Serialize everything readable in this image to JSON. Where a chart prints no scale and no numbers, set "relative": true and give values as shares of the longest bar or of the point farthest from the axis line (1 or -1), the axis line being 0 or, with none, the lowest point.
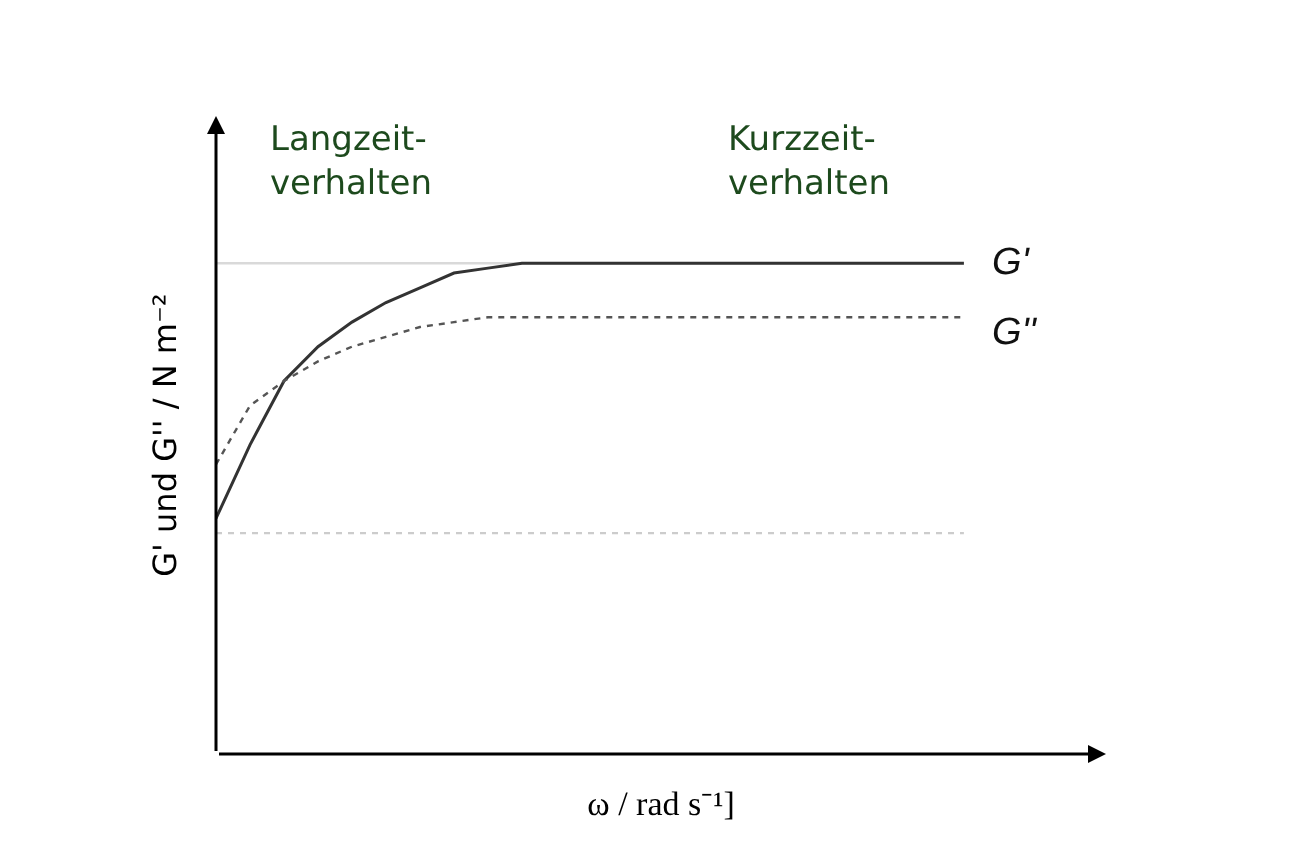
{
  "chart_data": {
    "type": "line",
    "relative": true,
    "xlabel": "ω / rad s⁻¹]",
    "ylabel": "G' und G'' / N m⁻²",
    "annotations": [
      "Langzeit-\nverhalten",
      "Kurzzeit-\nverhalten"
    ],
    "categories": [
      null,
      null,
      null,
      null,
      null,
      null,
      null,
      null,
      null,
      null,
      null,
      null,
      null,
      null,
      null,
      null,
      null,
      null,
      null,
      null,
      null,
      null,
      null
    ],
    "series": [
      {
        "name": "G'",
        "color": "#333333",
        "line_style": "solid",
        "values": [
          0.48,
          0.63,
          0.76,
          0.83,
          0.88,
          0.92,
          0.95,
          0.98,
          0.99,
          1,
          1,
          1,
          1,
          1,
          1,
          1,
          1,
          1,
          1,
          1,
          1,
          1,
          1
        ]
      },
      {
        "name": "G''",
        "color": "#555555",
        "line_style": "dotted",
        "values": [
          0.59,
          0.71,
          0.76,
          0.8,
          0.83,
          0.85,
          0.87,
          0.88,
          0.89,
          0.89,
          0.89,
          0.89,
          0.89,
          0.89,
          0.89,
          0.89,
          0.89,
          0.89,
          0.89,
          0.89,
          0.89,
          0.89,
          0.89
        ]
      }
    ],
    "ref_lines": [
      {
        "axis": "y",
        "value": 1,
        "color": "#d9d9d9",
        "line_style": "solid"
      },
      {
        "axis": "y",
        "value": 0.45,
        "color": "#cccccc",
        "line_style": "dotted"
      }
    ]
  }
}
